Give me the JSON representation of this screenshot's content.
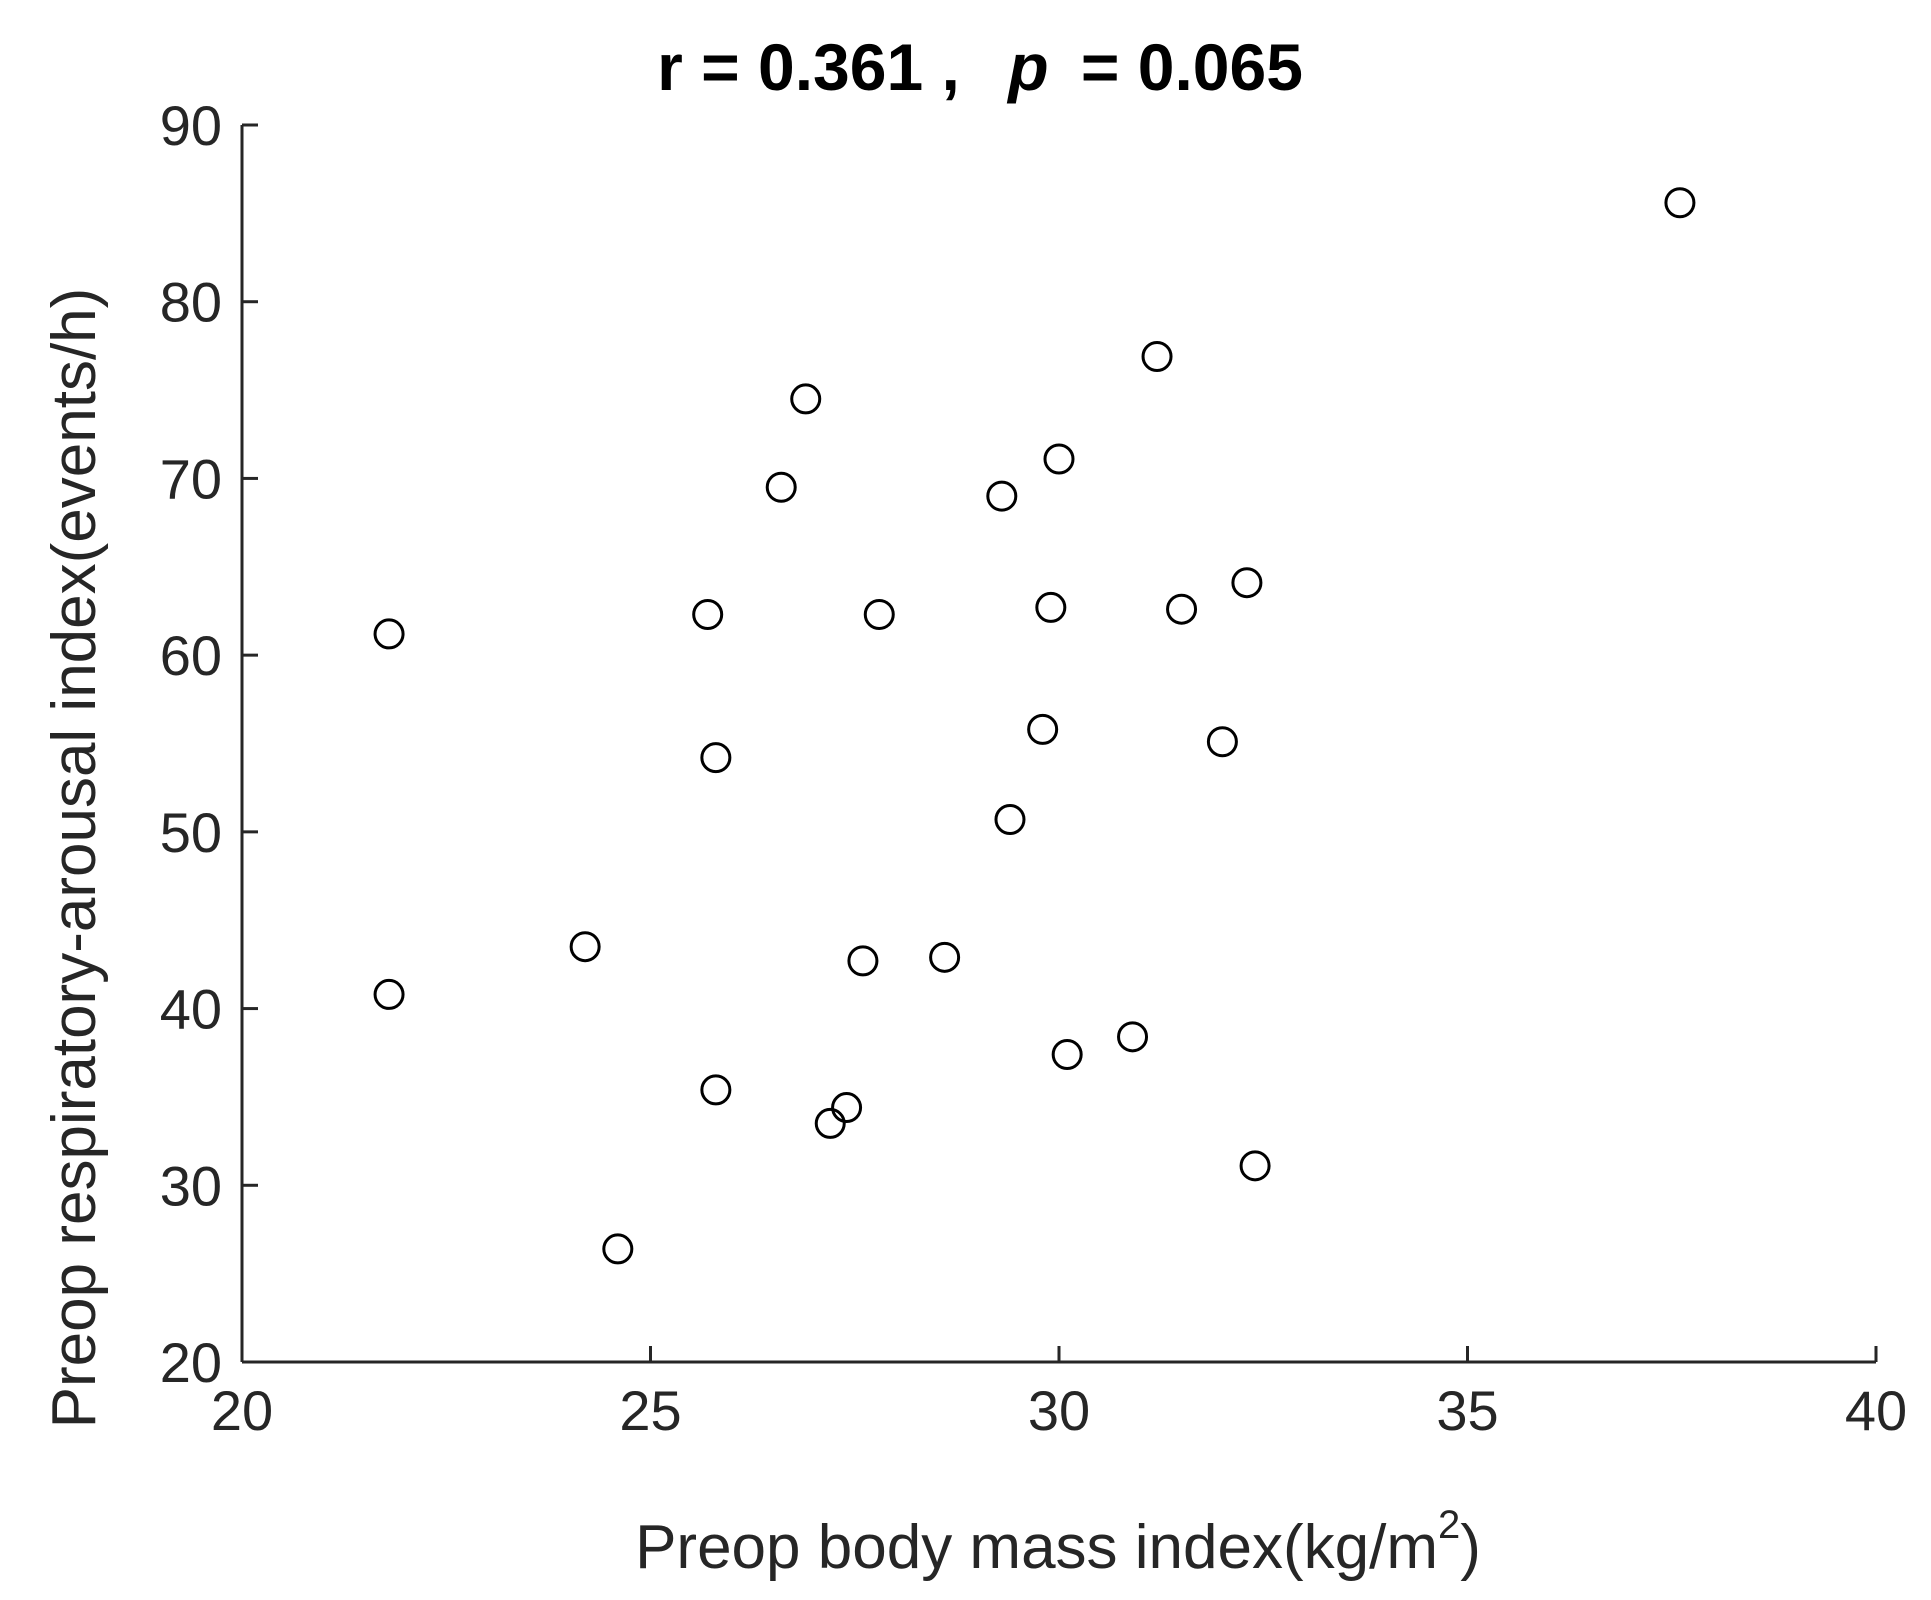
{
  "chart_data": {
    "type": "scatter",
    "title": {
      "r_label": "r = 0.361 ,",
      "p_symbol": "p",
      "p_value": "= 0.065"
    },
    "xlabel": "Preop body mass index(kg/m",
    "xlabel_superscript": "2",
    "xlabel_close": ")",
    "ylabel": "Preop respiratory-arousal index(events/h)",
    "xlim": [
      20,
      40
    ],
    "ylim": [
      20,
      90
    ],
    "xticks": [
      20,
      25,
      30,
      35,
      40
    ],
    "yticks": [
      20,
      30,
      40,
      50,
      60,
      70,
      80,
      90
    ],
    "grid": false,
    "marker": "open-circle",
    "colors": {
      "marker_edge": "#000000",
      "axis": "#262626"
    },
    "points": [
      {
        "x": 21.8,
        "y": 61.2
      },
      {
        "x": 21.8,
        "y": 40.8
      },
      {
        "x": 24.2,
        "y": 43.5
      },
      {
        "x": 24.6,
        "y": 26.4
      },
      {
        "x": 25.7,
        "y": 62.3
      },
      {
        "x": 25.8,
        "y": 54.2
      },
      {
        "x": 25.8,
        "y": 35.4
      },
      {
        "x": 26.6,
        "y": 69.5
      },
      {
        "x": 26.9,
        "y": 74.5
      },
      {
        "x": 27.2,
        "y": 33.5
      },
      {
        "x": 27.4,
        "y": 34.4
      },
      {
        "x": 27.6,
        "y": 42.7
      },
      {
        "x": 27.8,
        "y": 62.3
      },
      {
        "x": 28.6,
        "y": 42.9
      },
      {
        "x": 29.3,
        "y": 69.0
      },
      {
        "x": 29.4,
        "y": 50.7
      },
      {
        "x": 29.8,
        "y": 55.8
      },
      {
        "x": 29.9,
        "y": 62.7
      },
      {
        "x": 30.0,
        "y": 71.1
      },
      {
        "x": 30.1,
        "y": 37.4
      },
      {
        "x": 30.9,
        "y": 38.4
      },
      {
        "x": 31.2,
        "y": 76.9
      },
      {
        "x": 31.5,
        "y": 62.6
      },
      {
        "x": 32.0,
        "y": 55.1
      },
      {
        "x": 32.3,
        "y": 64.1
      },
      {
        "x": 32.4,
        "y": 31.1
      },
      {
        "x": 37.6,
        "y": 85.6
      }
    ]
  }
}
